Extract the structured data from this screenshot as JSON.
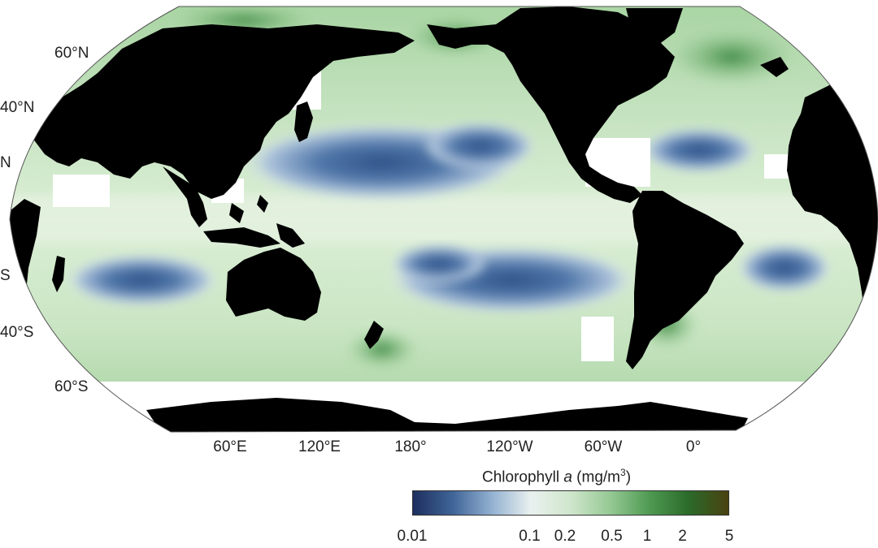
{
  "map": {
    "projection": "robinson",
    "central_longitude": "150°W",
    "land_color": "#000000",
    "nodata_color": "#ffffff"
  },
  "lat_labels": [
    "60°N",
    "40°N",
    "N",
    "S",
    "40°S",
    "60°S"
  ],
  "lon_labels": [
    "60°E",
    "120°E",
    "180°",
    "120°W",
    "60°W",
    "0°"
  ],
  "colorbar": {
    "title_prefix": "Chlorophyll ",
    "title_var": "a",
    "title_units_open": " (mg/m",
    "title_sup": "3",
    "title_units_close": ")",
    "scale": "log",
    "range": [
      0.01,
      5
    ],
    "ticks": [
      "0.01",
      "0.1",
      "0.2",
      "0.5",
      "1",
      "2",
      "5"
    ],
    "colors": [
      "#1d2f5e",
      "#3f6497",
      "#93b1d1",
      "#e9f1ef",
      "#cfe6cc",
      "#96c994",
      "#4e9a52",
      "#2b6a2a",
      "#4a4110"
    ]
  }
}
